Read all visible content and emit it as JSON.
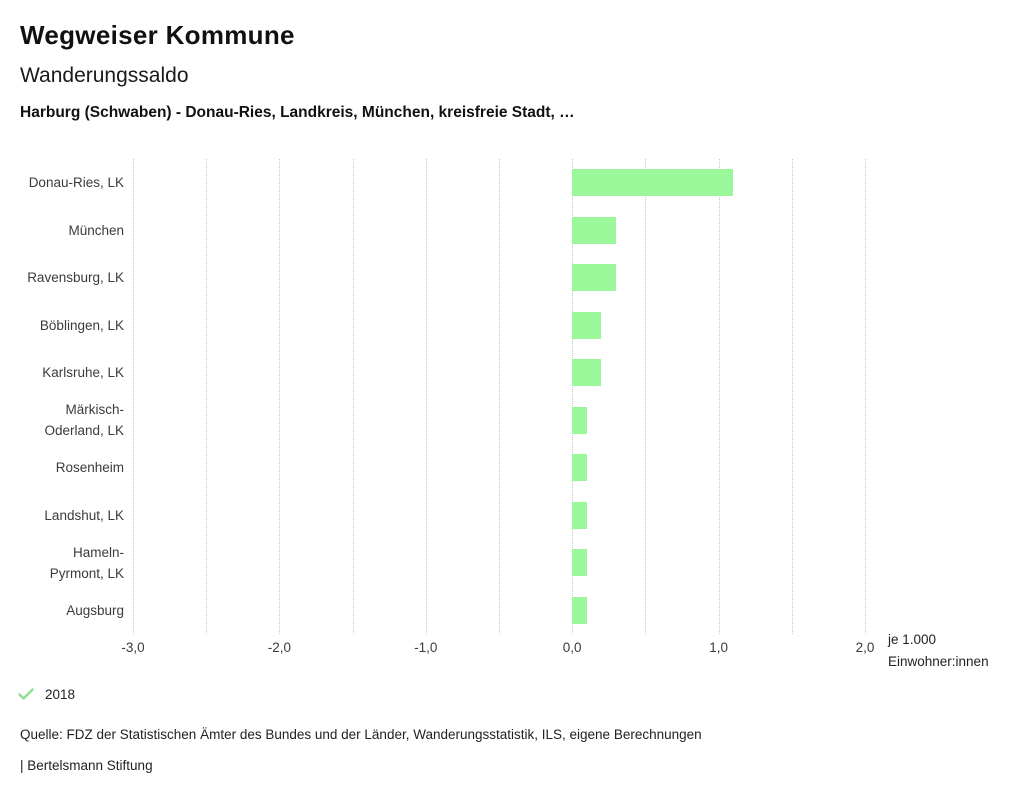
{
  "header": {
    "title": "Wegweiser Kommune",
    "subtitle": "Wanderungssaldo",
    "region_line": "Harburg (Schwaben) - Donau-Ries, Landkreis, München, kreisfreie Stadt, …"
  },
  "chart_data": {
    "type": "bar",
    "orientation": "horizontal",
    "title": "Wanderungssaldo",
    "categories": [
      "Donau-Ries, LK",
      "München",
      "Ravensburg, LK",
      "Böblingen, LK",
      "Karlsruhe, LK",
      "Märkisch-Oderland, LK",
      "Rosenheim",
      "Landshut, LK",
      "Hameln-Pyrmont, LK",
      "Augsburg"
    ],
    "display_labels": [
      "Donau-Ries, LK",
      "München",
      "Ravensburg, LK",
      "Böblingen, LK",
      "Karlsruhe, LK",
      "Märkisch-\nOderland, LK",
      "Rosenheim",
      "Landshut, LK",
      "Hameln-\nPyrmont, LK",
      "Augsburg"
    ],
    "values": [
      1.1,
      0.3,
      0.3,
      0.2,
      0.2,
      0.1,
      0.1,
      0.1,
      0.1,
      0.1
    ],
    "year": "2018",
    "xlim": [
      -3.0,
      2.0
    ],
    "x_ticks": [
      -3,
      -2,
      -1,
      0,
      1,
      2
    ],
    "x_tick_labels": [
      "-3,0",
      "-2,0",
      "-1,0",
      "0,0",
      "1,0",
      "2,0"
    ],
    "gridline_step": 0.5,
    "grid": true,
    "xlabel": "je 1.000 Einwohner:innen",
    "unit_label": "je 1.000\nEinwohner:innen",
    "bar_color": "#9af79a",
    "legend_position": "bottom-left"
  },
  "legend": {
    "year_label": "2018"
  },
  "footer": {
    "source": "Quelle: FDZ der Statistischen Ämter des Bundes und der Länder, Wanderungsstatistik, ILS, eigene Berechnungen",
    "attribution": "| Bertelsmann Stiftung"
  },
  "colors": {
    "bar": "#9af79a",
    "check": "#8ee08e",
    "grid": "#c4c4c4",
    "text": "#1a1a1a"
  }
}
